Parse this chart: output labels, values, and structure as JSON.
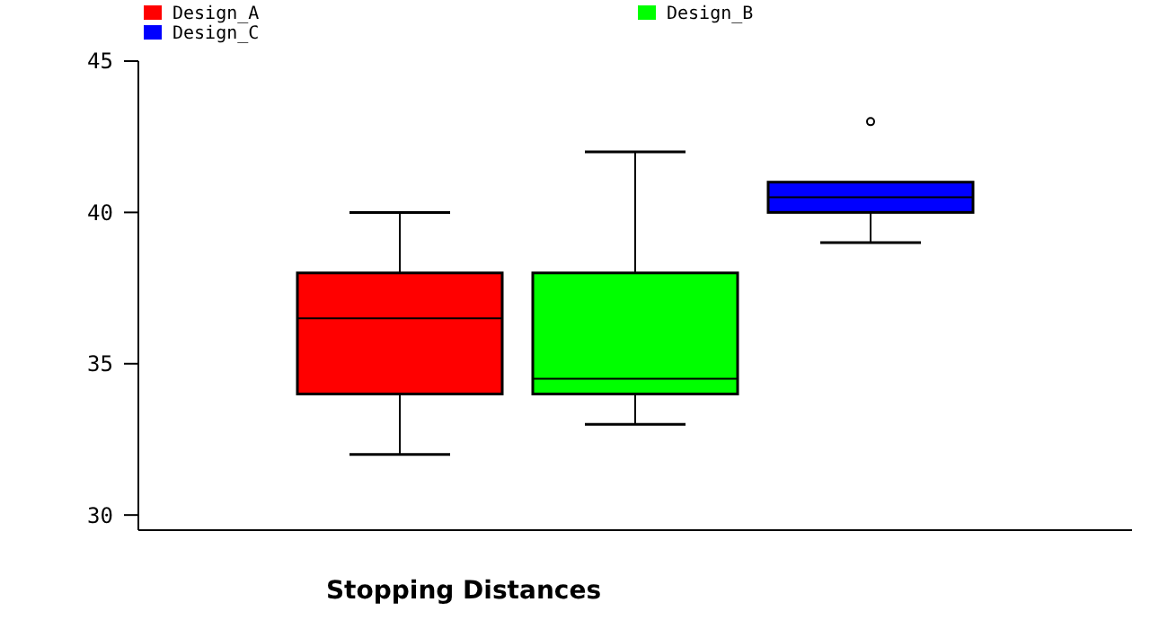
{
  "chart_data": {
    "type": "box",
    "xlabel": "Stopping Distances",
    "categories": [
      null
    ],
    "series": [
      {
        "name": "Design_A",
        "color": "#ff0000",
        "boxes": [
          {
            "low": 32,
            "q1": 34,
            "median": 36.5,
            "q3": 38,
            "high": 40
          }
        ]
      },
      {
        "name": "Design_B",
        "color": "#00ff00",
        "boxes": [
          {
            "low": 33,
            "q1": 34,
            "median": 34.5,
            "q3": 38,
            "high": 42
          }
        ]
      },
      {
        "name": "Design_C",
        "color": "#0000ff",
        "boxes": [
          {
            "low": 39,
            "q1": 40,
            "median": 40.5,
            "q3": 41,
            "high": 41,
            "outliers": [
              43
            ]
          }
        ]
      }
    ],
    "ylim": [
      29.5,
      45
    ],
    "yticks": [
      30,
      35,
      40,
      45
    ],
    "grid": false,
    "legend": "top"
  }
}
